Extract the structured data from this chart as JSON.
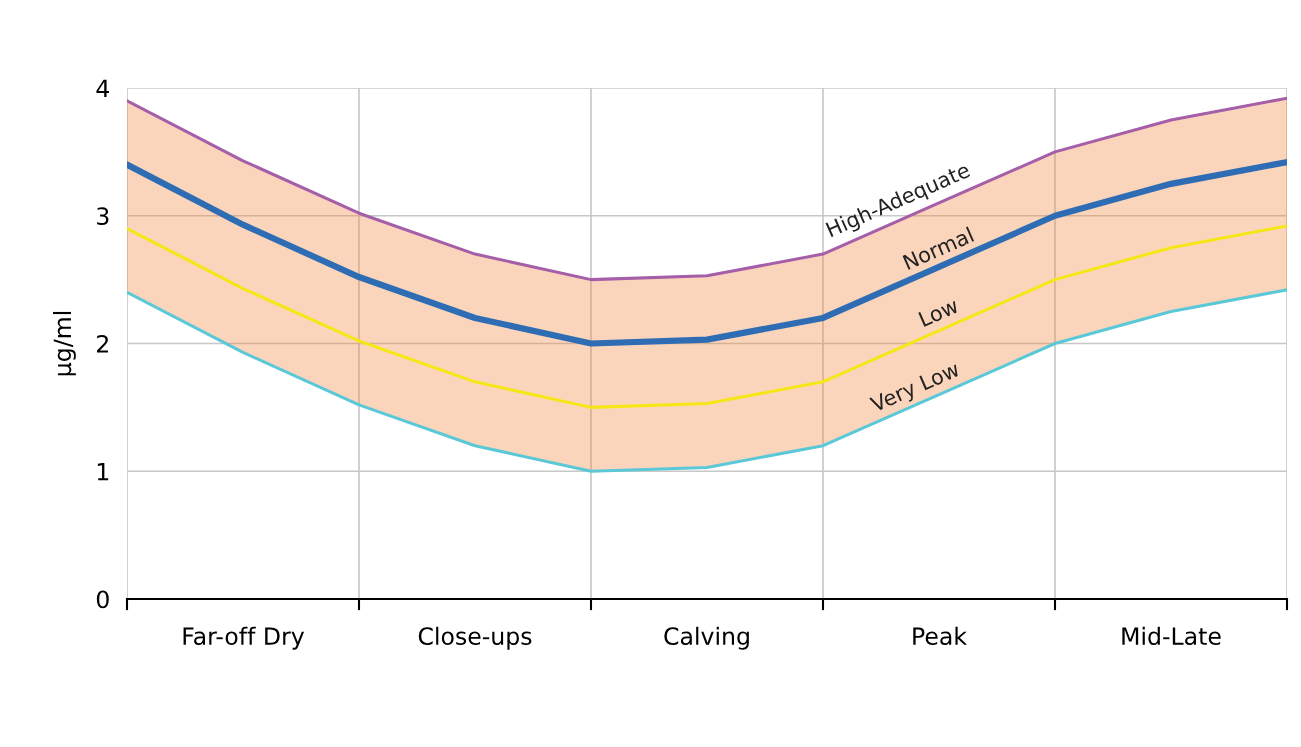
{
  "chart_data": {
    "type": "line",
    "ylabel": "µg/ml",
    "categories": [
      null,
      "Far-off Dry",
      null,
      "Close-ups",
      null,
      "Calving",
      null,
      "Peak",
      null,
      "Mid-Late",
      null
    ],
    "series": [
      {
        "name": "High-Adequate",
        "color": "#a55ea8",
        "values": [
          3.9,
          3.43,
          3.02,
          2.7,
          2.5,
          2.53,
          2.7,
          3.1,
          3.5,
          3.75,
          3.92
        ]
      },
      {
        "name": "Normal",
        "color": "#2e6db4",
        "values": [
          3.4,
          2.93,
          2.52,
          2.2,
          2.0,
          2.03,
          2.2,
          2.6,
          3.0,
          3.25,
          3.42
        ],
        "lower": [
          2.4,
          1.93,
          1.52,
          1.2,
          1.0,
          1.03,
          1.2,
          1.6,
          2.0,
          2.25,
          2.42
        ],
        "upper": [
          3.9,
          3.43,
          3.02,
          2.7,
          2.5,
          2.53,
          2.7,
          3.1,
          3.5,
          3.75,
          3.92
        ]
      },
      {
        "name": "Low",
        "color": "#f5e616",
        "values": [
          2.9,
          2.43,
          2.02,
          1.7,
          1.5,
          1.53,
          1.7,
          2.1,
          2.5,
          2.75,
          2.92
        ]
      },
      {
        "name": "Very Low",
        "color": "#5bc8d8",
        "values": [
          2.4,
          1.93,
          1.52,
          1.2,
          1.0,
          1.03,
          1.2,
          1.6,
          2.0,
          2.25,
          2.42
        ]
      }
    ],
    "ylim": [
      0,
      4
    ],
    "yticks": [
      0,
      1,
      2,
      3,
      4
    ],
    "grid": true,
    "legend": false,
    "marker": "none",
    "line_style": "solid"
  }
}
